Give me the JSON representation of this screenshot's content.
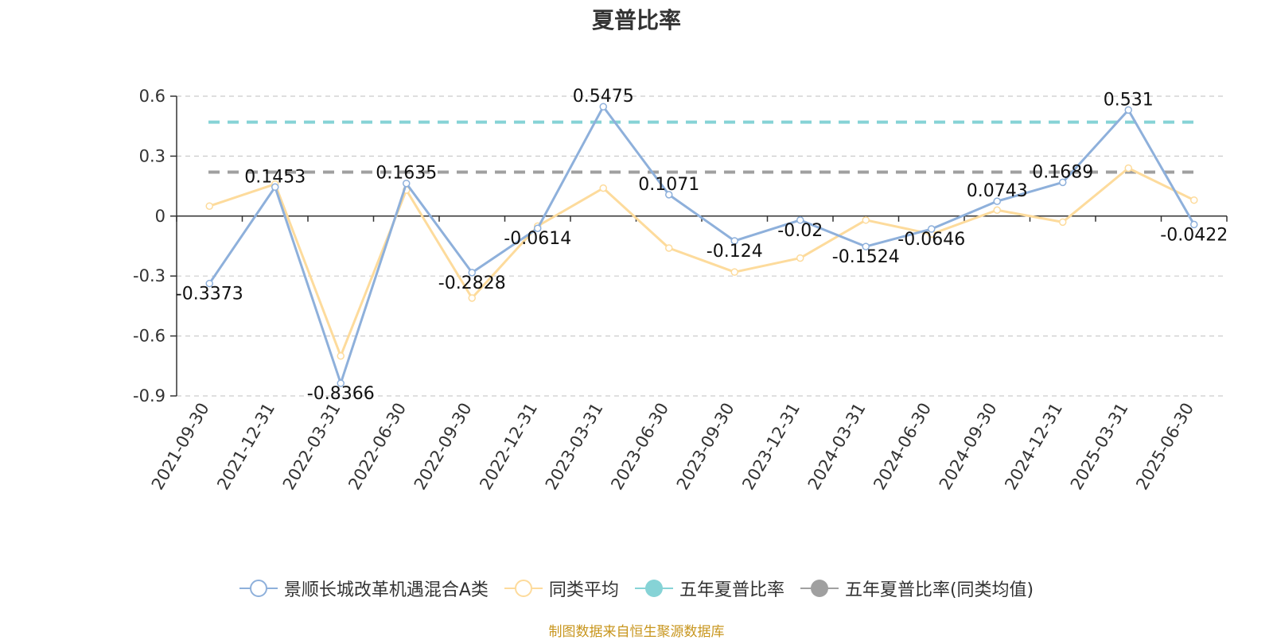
{
  "chart_data": {
    "type": "line",
    "title": "夏普比率",
    "categories": [
      "2021-09-30",
      "2021-12-31",
      "2022-03-31",
      "2022-06-30",
      "2022-09-30",
      "2022-12-31",
      "2023-03-31",
      "2023-06-30",
      "2023-09-30",
      "2023-12-31",
      "2024-03-31",
      "2024-06-30",
      "2024-09-30",
      "2024-12-31",
      "2025-03-31",
      "2025-06-30"
    ],
    "ylim": [
      -0.9,
      0.6
    ],
    "yticks": [
      0.6,
      0.3,
      0,
      -0.3,
      -0.6,
      -0.9
    ],
    "ytick_labels": [
      "0.6",
      "0.3",
      "0",
      "-0.3",
      "-0.6",
      "-0.9"
    ],
    "grid": true,
    "legend_position": "bottom",
    "series": [
      {
        "name": "景顺长城改革机遇混合A类",
        "color": "#8eb0db",
        "values": [
          -0.3373,
          0.1453,
          -0.8366,
          0.1635,
          -0.2828,
          -0.0614,
          0.5475,
          0.1071,
          -0.124,
          -0.02,
          -0.1524,
          -0.0646,
          0.0743,
          0.1689,
          0.531,
          -0.0422
        ],
        "labels": [
          "-0.3373",
          "0.1453",
          "-0.8366",
          "0.1635",
          "-0.2828",
          "-0.0614",
          "0.5475",
          "0.1071",
          "-0.124",
          "-0.02",
          "-0.1524",
          "-0.0646",
          "0.0743",
          "0.1689",
          "0.531",
          "-0.0422"
        ]
      },
      {
        "name": "同类平均",
        "color": "#fddb9c",
        "values": [
          0.05,
          0.16,
          -0.7,
          0.13,
          -0.41,
          -0.05,
          0.14,
          -0.16,
          -0.28,
          -0.21,
          -0.02,
          -0.09,
          0.03,
          -0.03,
          0.24,
          0.08
        ]
      },
      {
        "name": "五年夏普比率",
        "color": "#86d3d6",
        "value": 0.47
      },
      {
        "name": "五年夏普比率(同类均值)",
        "color": "#a0a0a0",
        "value": 0.22
      }
    ],
    "source_note": "制图数据来自恒生聚源数据库"
  }
}
